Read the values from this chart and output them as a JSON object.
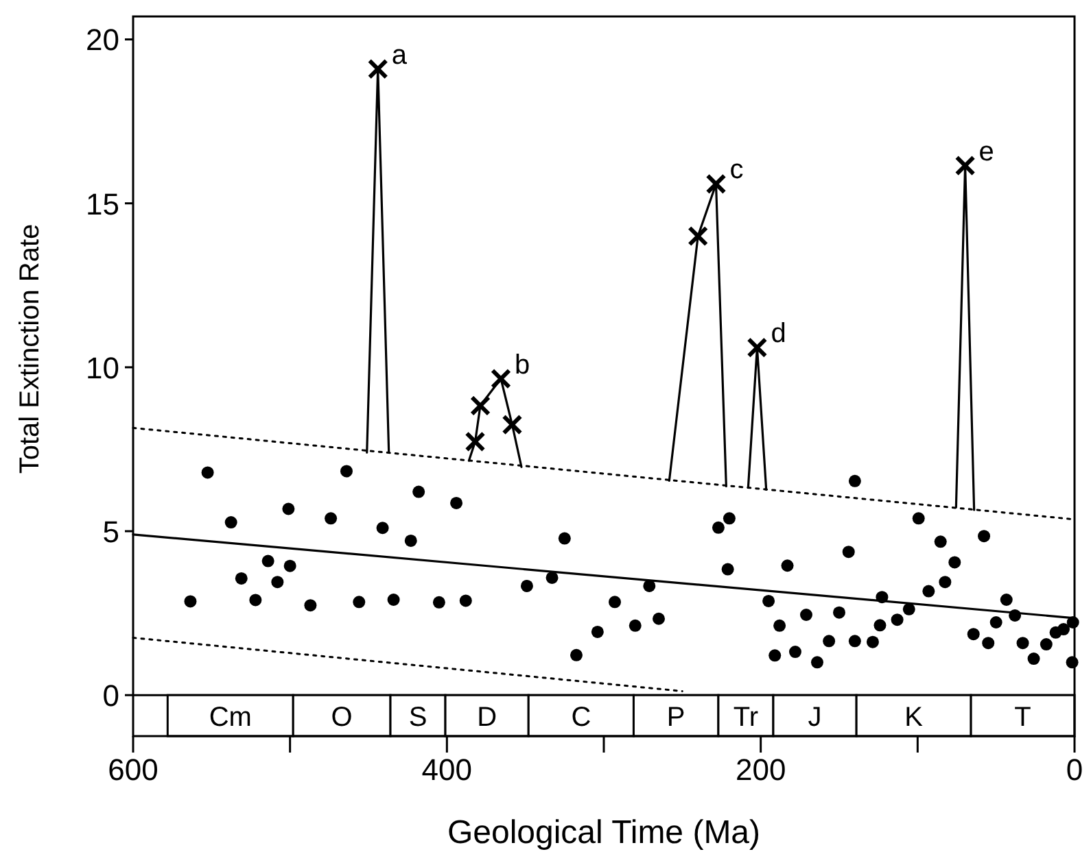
{
  "chart_data": {
    "type": "scatter",
    "xlabel": "Geological Time (Ma)",
    "ylabel": "Total Extinction Rate",
    "xlim": [
      600,
      0
    ],
    "xticks": [
      600,
      {
        "value": 500,
        "label": null
      },
      400,
      {
        "value": 300,
        "label": null
      },
      200,
      {
        "value": 100,
        "label": null
      },
      0
    ],
    "ylim": [
      -1.25,
      20.7
    ],
    "yticks": [
      0,
      5,
      10,
      15,
      20
    ],
    "series": [
      {
        "marker": "circle",
        "color": "#000000",
        "x": [
          552.5,
          464,
          537.6,
          501,
          474,
          418,
          441,
          394,
          423,
          514,
          500,
          531,
          508,
          563.5,
          522,
          487,
          456,
          434,
          405,
          388,
          325,
          349,
          333,
          271,
          293,
          265,
          280,
          304,
          317.5,
          227,
          220,
          221,
          183,
          195,
          188,
          191,
          178,
          140,
          171,
          164,
          156.5,
          150,
          144,
          140,
          128.6,
          124,
          122.7,
          113,
          105.5,
          99.4,
          93,
          85.4,
          82.5,
          76.4,
          57.7,
          64.4,
          55,
          50,
          43.4,
          38,
          33,
          26,
          18,
          12,
          7,
          1,
          1.5
        ],
        "values": [
          6.79,
          6.83,
          5.27,
          5.68,
          5.39,
          6.2,
          5.1,
          5.86,
          4.71,
          4.09,
          3.94,
          3.56,
          3.45,
          2.86,
          2.9,
          2.74,
          2.84,
          2.91,
          2.83,
          2.88,
          4.78,
          3.33,
          3.58,
          3.33,
          2.84,
          2.33,
          2.12,
          1.93,
          1.22,
          5.11,
          5.39,
          3.84,
          3.95,
          2.87,
          2.12,
          1.21,
          1.32,
          6.53,
          2.45,
          1,
          1.65,
          2.52,
          4.37,
          1.65,
          1.62,
          2.13,
          2.99,
          2.3,
          2.62,
          5.39,
          3.17,
          4.68,
          3.45,
          4.05,
          4.85,
          1.86,
          1.59,
          2.22,
          2.91,
          2.43,
          1.59,
          1.11,
          1.55,
          1.91,
          2.01,
          2.22,
          1
        ]
      },
      {
        "type": "line",
        "marker": "none",
        "line_style": "solid",
        "color": "#000000",
        "x": [
          451,
          444,
          437
        ],
        "values": [
          7.4,
          19.1,
          7.4
        ]
      },
      {
        "type": "line",
        "marker": "none",
        "line_style": "solid",
        "color": "#000000",
        "x": [
          386,
          382,
          378.7,
          365.6,
          358.4,
          352.5
        ],
        "values": [
          7.15,
          7.73,
          8.83,
          9.65,
          8.25,
          6.96
        ]
      },
      {
        "type": "line",
        "marker": "none",
        "line_style": "solid",
        "color": "#000000",
        "x": [
          258.3,
          240,
          228.5,
          222
        ],
        "values": [
          6.54,
          14,
          15.59,
          6.37
        ]
      },
      {
        "type": "line",
        "marker": "none",
        "line_style": "solid",
        "color": "#000000",
        "x": [
          208,
          202.3,
          196.5
        ],
        "values": [
          6.33,
          10.6,
          6.27
        ]
      },
      {
        "type": "line",
        "marker": "none",
        "line_style": "solid",
        "color": "#000000",
        "x": [
          75.5,
          69.7,
          64
        ],
        "values": [
          5.73,
          16.15,
          5.65
        ]
      },
      {
        "type": "scatter",
        "marker": "cross",
        "color": "#000000",
        "x": [
          444,
          382,
          378.7,
          365.6,
          358.4,
          240,
          228.5,
          202.3,
          69.7
        ],
        "values": [
          19.1,
          7.73,
          8.83,
          9.65,
          8.25,
          14,
          15.59,
          10.6,
          16.15
        ]
      },
      {
        "type": "line",
        "marker": "none",
        "line_style": "solid",
        "color": "#000000",
        "x": [
          600,
          0
        ],
        "values": [
          4.9,
          2.35
        ]
      },
      {
        "type": "line",
        "marker": "none",
        "line_style": "dotted",
        "color": "#000000",
        "x": [
          600,
          0
        ],
        "values": [
          8.15,
          5.36
        ]
      },
      {
        "type": "line",
        "marker": "none",
        "line_style": "dotted",
        "color": "#000000",
        "x": [
          600,
          250
        ],
        "values": [
          1.75,
          0.12
        ]
      }
    ],
    "bands": [
      {
        "axis": "x",
        "from": 578,
        "to": 498,
        "label": "Cm",
        "color": "#ffffff"
      },
      {
        "axis": "x",
        "from": 498,
        "to": 436,
        "label": "O",
        "color": "#ffffff"
      },
      {
        "axis": "x",
        "from": 436,
        "to": 401,
        "label": "S",
        "color": "#ffffff"
      },
      {
        "axis": "x",
        "from": 401,
        "to": 348,
        "label": "D",
        "color": "#ffffff"
      },
      {
        "axis": "x",
        "from": 348,
        "to": 281,
        "label": "C",
        "color": "#ffffff"
      },
      {
        "axis": "x",
        "from": 281,
        "to": 227,
        "label": "P",
        "color": "#ffffff"
      },
      {
        "axis": "x",
        "from": 227,
        "to": 192,
        "label": "Tr",
        "color": "#ffffff"
      },
      {
        "axis": "x",
        "from": 192,
        "to": 139,
        "label": "J",
        "color": "#ffffff"
      },
      {
        "axis": "x",
        "from": 139,
        "to": 66,
        "label": "K",
        "color": "#ffffff"
      },
      {
        "axis": "x",
        "from": 66,
        "to": 0,
        "label": "T",
        "color": "#ffffff"
      }
    ],
    "annotations": [
      {
        "text": "a",
        "x": 444,
        "y": 19.1
      },
      {
        "text": "b",
        "x": 365.6,
        "y": 9.65
      },
      {
        "text": "c",
        "x": 228.5,
        "y": 15.59
      },
      {
        "text": "d",
        "x": 202.3,
        "y": 10.6
      },
      {
        "text": "e",
        "x": 69.7,
        "y": 16.15
      }
    ]
  }
}
